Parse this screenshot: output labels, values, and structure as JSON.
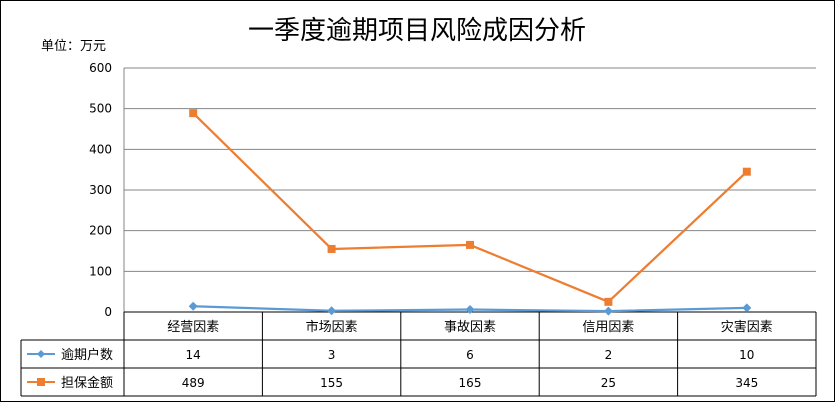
{
  "chart_data": {
    "type": "line",
    "title": "一季度逾期项目风险成因分析",
    "unit_label": "单位：万元",
    "categories": [
      "经营因素",
      "市场因素",
      "事故因素",
      "信用因素",
      "灾害因素"
    ],
    "ylim": [
      0,
      600
    ],
    "yticks": [
      0,
      100,
      200,
      300,
      400,
      500,
      600
    ],
    "grid": true,
    "legend": "data-table-left",
    "series": [
      {
        "name": "逾期户数",
        "values": [
          14,
          3,
          6,
          2,
          10
        ],
        "color": "#5B9BD5",
        "marker": "diamond"
      },
      {
        "name": "担保金额",
        "values": [
          489,
          155,
          165,
          25,
          345
        ],
        "color": "#ED7D31",
        "marker": "square"
      }
    ]
  }
}
